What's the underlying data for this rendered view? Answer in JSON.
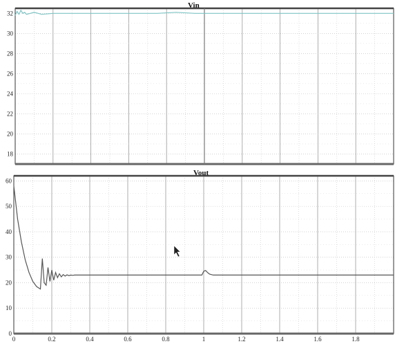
{
  "chart_data": [
    {
      "type": "line",
      "title": "Vin",
      "xlabel": "",
      "ylabel": "",
      "xlim": [
        0,
        2.0
      ],
      "ylim": [
        17,
        32.5
      ],
      "grid": true,
      "ytick_labels": [
        "18",
        "20",
        "22",
        "24",
        "26",
        "28",
        "30",
        "32"
      ],
      "series": [
        {
          "color": "#7ec4c4",
          "x": [
            0,
            0.01,
            0.02,
            0.03,
            0.04,
            0.05,
            0.06,
            0.08,
            0.1,
            0.14,
            0.2,
            0.3,
            0.5,
            0.75,
            0.85,
            0.95,
            1.0,
            1.2,
            1.5,
            2.0
          ],
          "y": [
            31.8,
            32.2,
            31.9,
            32.3,
            32.0,
            32.1,
            31.9,
            32.0,
            32.1,
            31.9,
            32.0,
            32.0,
            32.0,
            32.0,
            32.1,
            32.0,
            32.0,
            32.0,
            32.0,
            32.0
          ]
        }
      ]
    },
    {
      "type": "line",
      "title": "Vout",
      "xlabel": "",
      "ylabel": "",
      "xlim": [
        0,
        2.0
      ],
      "ylim": [
        0,
        62
      ],
      "grid": true,
      "ytick_labels": [
        "0",
        "10",
        "20",
        "30",
        "40",
        "50",
        "60"
      ],
      "xtick_labels": [
        "0",
        "0.2",
        "0.4",
        "0.6",
        "0.8",
        "1",
        "1.2",
        "1.4",
        "1.6",
        "1.8"
      ],
      "series": [
        {
          "color": "#555555",
          "x": [
            0,
            0.02,
            0.04,
            0.06,
            0.08,
            0.1,
            0.12,
            0.14,
            0.15,
            0.16,
            0.17,
            0.18,
            0.19,
            0.2,
            0.21,
            0.22,
            0.23,
            0.24,
            0.25,
            0.26,
            0.27,
            0.28,
            0.29,
            0.3,
            0.31,
            0.32,
            0.5,
            0.8,
            0.99,
            1.0,
            1.01,
            1.02,
            1.03,
            1.05,
            1.1,
            1.5,
            2.0
          ],
          "y": [
            58,
            45,
            36,
            29,
            24,
            20.5,
            18.5,
            17.5,
            29.5,
            20,
            19,
            26,
            20.5,
            25,
            21,
            24,
            22,
            23.5,
            22.3,
            23.2,
            22.6,
            23.1,
            22.8,
            23,
            22.9,
            23,
            23,
            23,
            23,
            24.5,
            24.8,
            24,
            23.4,
            23,
            23,
            23,
            23
          ]
        }
      ]
    }
  ]
}
